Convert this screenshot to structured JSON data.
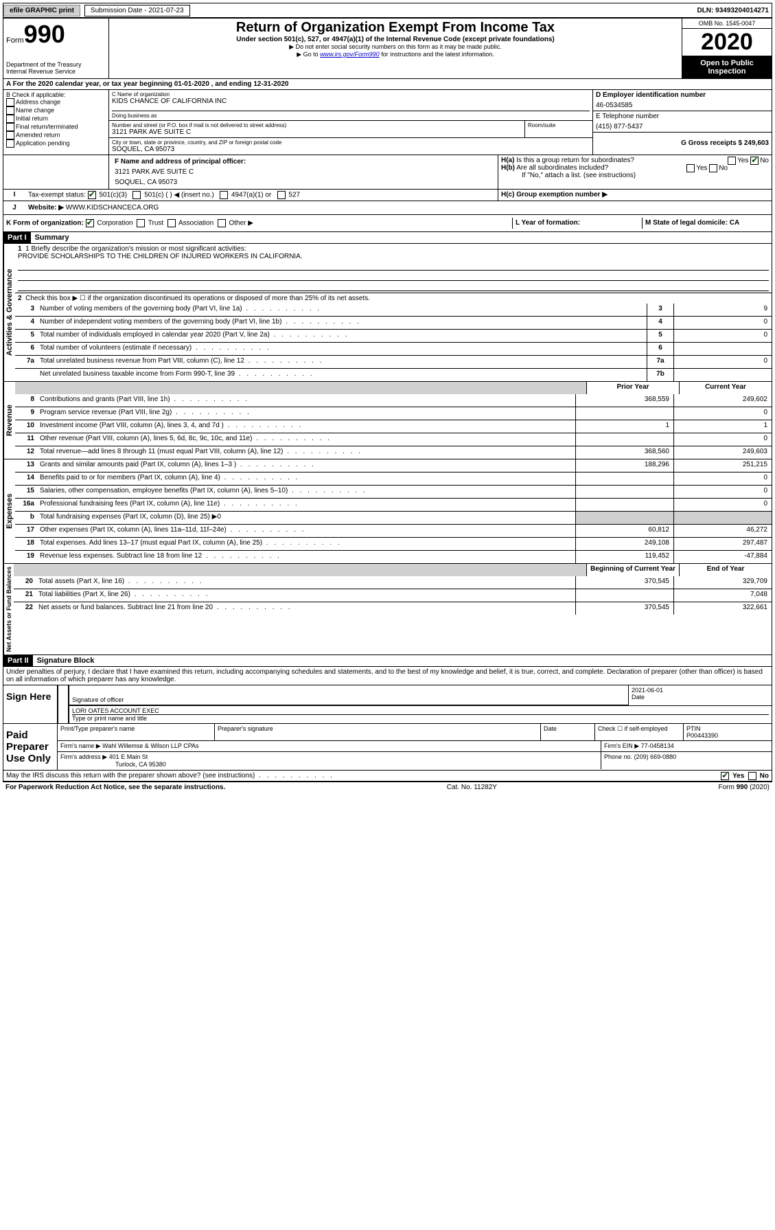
{
  "topbar": {
    "efile": "efile GRAPHIC print",
    "submission": "Submission Date - 2021-07-23",
    "dln": "DLN: 93493204014271"
  },
  "header": {
    "form": "Form",
    "number": "990",
    "dept1": "Department of the Treasury",
    "dept2": "Internal Revenue Service",
    "title": "Return of Organization Exempt From Income Tax",
    "sub": "Under section 501(c), 527, or 4947(a)(1) of the Internal Revenue Code (except private foundations)",
    "note1": "▶ Do not enter social security numbers on this form as it may be made public.",
    "note2": "▶ Go to www.irs.gov/Form990 for instructions and the latest information.",
    "omb": "OMB No. 1545-0047",
    "year": "2020",
    "open": "Open to Public Inspection"
  },
  "rowA": "A For the 2020 calendar year, or tax year beginning 01-01-2020   , and ending 12-31-2020",
  "colB": {
    "label": "B Check if applicable:",
    "items": [
      "Address change",
      "Name change",
      "Initial return",
      "Final return/terminated",
      "Amended return",
      "Application pending"
    ]
  },
  "colC": {
    "name_label": "C Name of organization",
    "name": "KIDS CHANCE OF CALIFORNIA INC",
    "dba_label": "Doing business as",
    "addr_label": "Number and street (or P.O. box if mail is not delivered to street address)",
    "room_label": "Room/suite",
    "addr": "3121 PARK AVE SUITE C",
    "city_label": "City or town, state or province, country, and ZIP or foreign postal code",
    "city": "SOQUEL, CA  95073"
  },
  "colD": {
    "ein_label": "D Employer identification number",
    "ein": "46-0534585",
    "phone_label": "E Telephone number",
    "phone": "(415) 877-5437",
    "gross_label": "G Gross receipts $ 249,603"
  },
  "rowF": {
    "f_label": "F  Name and address of principal officer:",
    "f_addr1": "3121 PARK AVE SUITE C",
    "f_addr2": "SOQUEL, CA  95073",
    "ha": "H(a)  Is this a group return for subordinates?",
    "hb": "H(b)  Are all subordinates included?",
    "hb_note": "If \"No,\" attach a list. (see instructions)",
    "hc": "H(c)  Group exemption number ▶",
    "yes": "Yes",
    "no": "No"
  },
  "rowI": {
    "label": "Tax-exempt status:",
    "opts": [
      "501(c)(3)",
      "501(c) (  ) ◀ (insert no.)",
      "4947(a)(1) or",
      "527"
    ]
  },
  "rowJ": {
    "label": "Website: ▶",
    "val": "WWW.KIDSCHANCECA.ORG"
  },
  "rowK": {
    "label": "K Form of organization:",
    "opts": [
      "Corporation",
      "Trust",
      "Association",
      "Other ▶"
    ],
    "l_label": "L Year of formation:",
    "m_label": "M State of legal domicile: CA"
  },
  "part1": {
    "header": "Part I",
    "title": "Summary",
    "vtext_ag": "Activities & Governance",
    "vtext_rev": "Revenue",
    "vtext_exp": "Expenses",
    "vtext_na": "Net Assets or Fund Balances",
    "l1_label": "1  Briefly describe the organization's mission or most significant activities:",
    "l1_val": "PROVIDE SCHOLARSHIPS TO THE CHILDREN OF INJURED WORKERS IN CALIFORNIA.",
    "l2": "Check this box ▶ ☐  if the organization discontinued its operations or disposed of more than 25% of its net assets.",
    "lines_ag": [
      {
        "n": "3",
        "d": "Number of voting members of the governing body (Part VI, line 1a)",
        "b": "3",
        "v": "9"
      },
      {
        "n": "4",
        "d": "Number of independent voting members of the governing body (Part VI, line 1b)",
        "b": "4",
        "v": "0"
      },
      {
        "n": "5",
        "d": "Total number of individuals employed in calendar year 2020 (Part V, line 2a)",
        "b": "5",
        "v": "0"
      },
      {
        "n": "6",
        "d": "Total number of volunteers (estimate if necessary)",
        "b": "6",
        "v": ""
      },
      {
        "n": "7a",
        "d": "Total unrelated business revenue from Part VIII, column (C), line 12",
        "b": "7a",
        "v": "0"
      },
      {
        "n": "",
        "d": "Net unrelated business taxable income from Form 990-T, line 39",
        "b": "7b",
        "v": ""
      }
    ],
    "col_prior": "Prior Year",
    "col_curr": "Current Year",
    "lines_rev": [
      {
        "n": "8",
        "d": "Contributions and grants (Part VIII, line 1h)",
        "p": "368,559",
        "c": "249,602"
      },
      {
        "n": "9",
        "d": "Program service revenue (Part VIII, line 2g)",
        "p": "",
        "c": "0"
      },
      {
        "n": "10",
        "d": "Investment income (Part VIII, column (A), lines 3, 4, and 7d )",
        "p": "1",
        "c": "1"
      },
      {
        "n": "11",
        "d": "Other revenue (Part VIII, column (A), lines 5, 6d, 8c, 9c, 10c, and 11e)",
        "p": "",
        "c": "0"
      },
      {
        "n": "12",
        "d": "Total revenue—add lines 8 through 11 (must equal Part VIII, column (A), line 12)",
        "p": "368,560",
        "c": "249,603"
      }
    ],
    "lines_exp": [
      {
        "n": "13",
        "d": "Grants and similar amounts paid (Part IX, column (A), lines 1–3 )",
        "p": "188,296",
        "c": "251,215"
      },
      {
        "n": "14",
        "d": "Benefits paid to or for members (Part IX, column (A), line 4)",
        "p": "",
        "c": "0"
      },
      {
        "n": "15",
        "d": "Salaries, other compensation, employee benefits (Part IX, column (A), lines 5–10)",
        "p": "",
        "c": "0"
      },
      {
        "n": "16a",
        "d": "Professional fundraising fees (Part IX, column (A), line 11e)",
        "p": "",
        "c": "0"
      },
      {
        "n": "b",
        "d": "Total fundraising expenses (Part IX, column (D), line 25) ▶0",
        "p": "SHADE",
        "c": "SHADE"
      },
      {
        "n": "17",
        "d": "Other expenses (Part IX, column (A), lines 11a–11d, 11f–24e)",
        "p": "60,812",
        "c": "46,272"
      },
      {
        "n": "18",
        "d": "Total expenses. Add lines 13–17 (must equal Part IX, column (A), line 25)",
        "p": "249,108",
        "c": "297,487"
      },
      {
        "n": "19",
        "d": "Revenue less expenses. Subtract line 18 from line 12",
        "p": "119,452",
        "c": "-47,884"
      }
    ],
    "col_beg": "Beginning of Current Year",
    "col_end": "End of Year",
    "lines_na": [
      {
        "n": "20",
        "d": "Total assets (Part X, line 16)",
        "p": "370,545",
        "c": "329,709"
      },
      {
        "n": "21",
        "d": "Total liabilities (Part X, line 26)",
        "p": "",
        "c": "7,048"
      },
      {
        "n": "22",
        "d": "Net assets or fund balances. Subtract line 21 from line 20",
        "p": "370,545",
        "c": "322,661"
      }
    ]
  },
  "part2": {
    "header": "Part II",
    "title": "Signature Block",
    "decl": "Under penalties of perjury, I declare that I have examined this return, including accompanying schedules and statements, and to the best of my knowledge and belief, it is true, correct, and complete. Declaration of preparer (other than officer) is based on all information of which preparer has any knowledge.",
    "sign_here": "Sign Here",
    "sig_officer": "Signature of officer",
    "date_val": "2021-06-01",
    "date": "Date",
    "officer_name": "LORI OATES  ACCOUNT EXEC",
    "type_name": "Type or print name and title",
    "paid": "Paid Preparer Use Only",
    "prep_name_label": "Print/Type preparer's name",
    "prep_sig_label": "Preparer's signature",
    "date_label": "Date",
    "check_label": "Check ☐ if self-employed",
    "ptin_label": "PTIN",
    "ptin": "P00443390",
    "firm_name_label": "Firm's name    ▶",
    "firm_name": "Wahl Willemse & Wilson LLP CPAs",
    "firm_ein_label": "Firm's EIN ▶",
    "firm_ein": "77-0458134",
    "firm_addr_label": "Firm's address ▶",
    "firm_addr1": "401 E Main St",
    "firm_addr2": "Turlock, CA  95380",
    "phone_label": "Phone no.",
    "phone": "(209) 669-0880"
  },
  "bottom": {
    "discuss": "May the IRS discuss this return with the preparer shown above? (see instructions)",
    "pra": "For Paperwork Reduction Act Notice, see the separate instructions.",
    "cat": "Cat. No. 11282Y",
    "form": "Form 990 (2020)"
  }
}
